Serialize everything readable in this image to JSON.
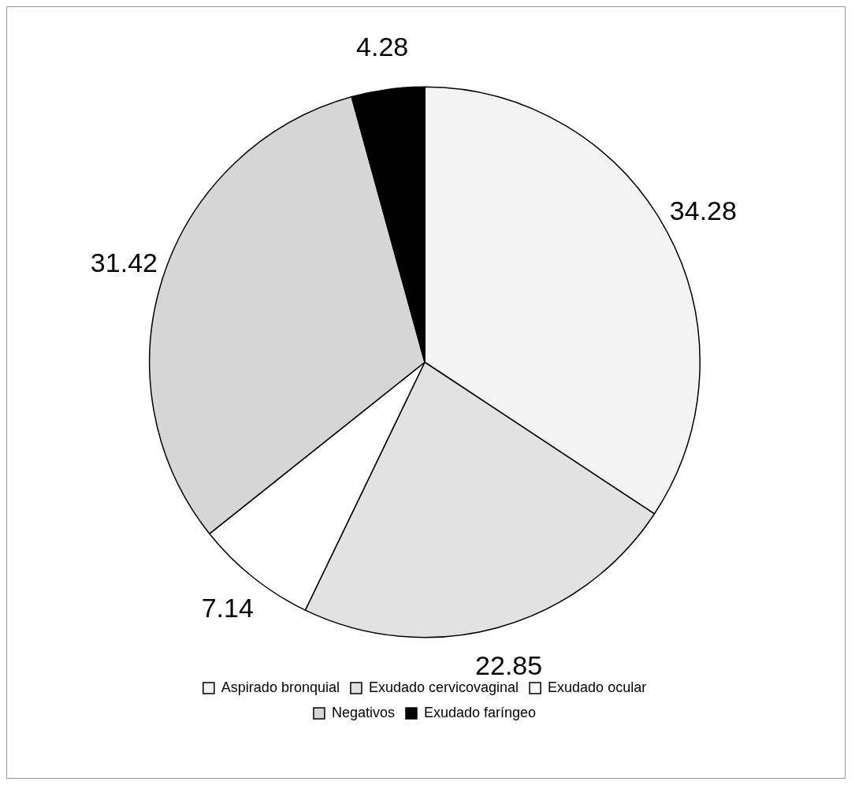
{
  "chart_data": {
    "type": "pie",
    "categories": [
      "Aspirado bronquial",
      "Exudado cervicovaginal",
      "Exudado ocular",
      "Negativos",
      "Exudado faríngeo"
    ],
    "values": [
      34.28,
      22.85,
      7.14,
      31.42,
      4.28
    ],
    "colors": [
      "#f3f3f3",
      "#e2e2e2",
      "#ffffff",
      "#d6d6d6",
      "#000000"
    ],
    "data_labels": true,
    "legend": "bottom"
  }
}
